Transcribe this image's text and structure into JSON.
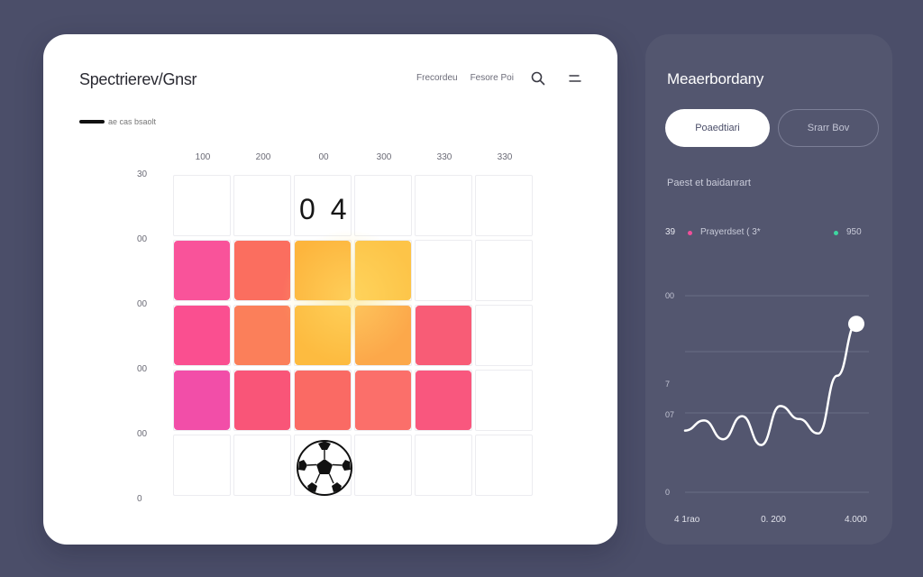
{
  "main": {
    "title": "Spectrierev/Gnsr",
    "header_links": [
      "Frecordeu",
      "Fesore Poi"
    ],
    "legend_text": "ae cas bsaolt",
    "columns": [
      "100",
      "200",
      "00",
      "300",
      "330",
      "330"
    ],
    "rows": [
      "30",
      "00",
      "00",
      "00",
      "00",
      "0"
    ],
    "score": "0 4",
    "tiles": [
      {
        "row": 1,
        "col": 0,
        "color": "#f9539a"
      },
      {
        "row": 1,
        "col": 1,
        "color": "#fb6e5f"
      },
      {
        "row": 1,
        "col": 2,
        "color": "#fdb53d"
      },
      {
        "row": 1,
        "col": 3,
        "color": "#fdc448"
      },
      {
        "row": 2,
        "col": 0,
        "color": "#fa4f90"
      },
      {
        "row": 2,
        "col": 1,
        "color": "#fb7f5a"
      },
      {
        "row": 2,
        "col": 2,
        "color": "#fdbb40"
      },
      {
        "row": 2,
        "col": 3,
        "color": "#fca84a"
      },
      {
        "row": 2,
        "col": 4,
        "color": "#f85c76"
      },
      {
        "row": 3,
        "col": 0,
        "color": "#f24ea8"
      },
      {
        "row": 3,
        "col": 1,
        "color": "#f95578"
      },
      {
        "row": 3,
        "col": 2,
        "color": "#fa6a64"
      },
      {
        "row": 3,
        "col": 3,
        "color": "#fb6f6a"
      },
      {
        "row": 3,
        "col": 4,
        "color": "#f9577e"
      }
    ],
    "icons": [
      "search-icon",
      "menu-icon",
      "soccer-ball-icon"
    ]
  },
  "side": {
    "title": "Meaerbordany",
    "primary_button": "Poaedtiari",
    "outline_button": "Srarr Bov",
    "subtitle": "Paest et baidanrart",
    "stat_number": "39",
    "stat_left_text": "Prayerdset ( 3*",
    "stat_right_text": "950",
    "stat_left_color": "#f04f9a",
    "stat_right_color": "#3ed6a0"
  },
  "chart_data": {
    "type": "line",
    "x": [
      0,
      1,
      2,
      3,
      4,
      5,
      6,
      7,
      8,
      9
    ],
    "values": [
      14,
      21,
      8,
      24,
      4,
      31,
      22,
      12,
      52,
      88
    ],
    "ylabels": [
      "00",
      "7",
      "07",
      "0"
    ],
    "xlabels": [
      "4 1rao",
      "0. 200",
      "4.000"
    ],
    "line_color": "#ffffff"
  }
}
